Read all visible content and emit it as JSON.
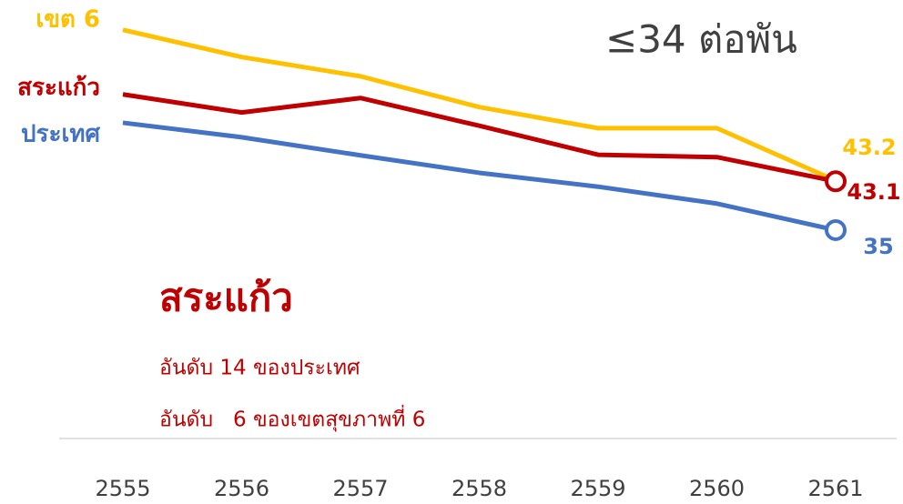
{
  "chart_data": {
    "type": "line",
    "annotation": "≤34 ต่อพัน",
    "subtitle": "สระแก้ว",
    "notes": [
      "อันดับ 14 ของประเทศ",
      "อันดับ   6 ของเขตสุขภาพที่ 6"
    ],
    "categories": [
      "2555",
      "2556",
      "2557",
      "2558",
      "2559",
      "2560",
      "2561"
    ],
    "series": [
      {
        "name": "เขต 6",
        "color": "#ffc000",
        "values": [
          68.2,
          63.7,
          60.5,
          55.4,
          51.9,
          51.9,
          43.2
        ]
      },
      {
        "name": "สระแก้ว",
        "color": "#c00000",
        "values": [
          57.5,
          54.5,
          56.9,
          52.3,
          47.5,
          47.1,
          43.1
        ]
      },
      {
        "name": "ประเทศ",
        "color": "#4472c4",
        "values": [
          52.8,
          50.4,
          47.4,
          44.5,
          42.2,
          39.4,
          35
        ]
      }
    ],
    "ylim": [
      0,
      73
    ]
  }
}
